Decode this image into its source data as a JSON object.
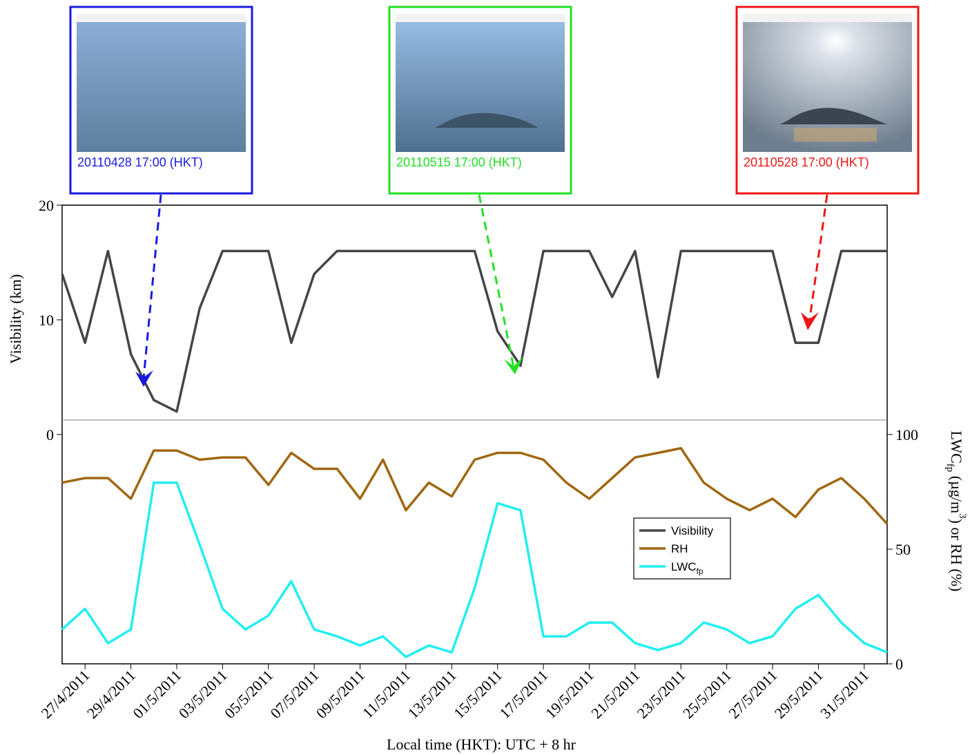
{
  "chart_data": {
    "type": "line",
    "ylabel": "Visibility (km)",
    "y2label": [
      {
        "text": "LWC"
      },
      {
        "text": "fp",
        "sub": true
      },
      {
        "text": " (µg/m"
      },
      {
        "text": "3",
        "sup": true
      },
      {
        "text": ") or RH (%)"
      }
    ],
    "xlabel": "Local time (HKT): UTC + 8 hr",
    "xlim": [
      "2011-04-26",
      "2011-06-01"
    ],
    "xticks": [
      {
        "value": "2011-04-27",
        "label": "27/4/2011"
      },
      {
        "value": "2011-04-29",
        "label": "29/4/2011"
      },
      {
        "value": "2011-05-01",
        "label": "01/5/2011"
      },
      {
        "value": "2011-05-03",
        "label": "03/5/2011"
      },
      {
        "value": "2011-05-05",
        "label": "05/5/2011"
      },
      {
        "value": "2011-05-07",
        "label": "07/5/2011"
      },
      {
        "value": "2011-05-09",
        "label": "09/5/2011"
      },
      {
        "value": "2011-05-11",
        "label": "11/5/2011"
      },
      {
        "value": "2011-05-13",
        "label": "13/5/2011"
      },
      {
        "value": "2011-05-15",
        "label": "15/5/2011"
      },
      {
        "value": "2011-05-17",
        "label": "17/5/2011"
      },
      {
        "value": "2011-05-19",
        "label": "19/5/2011"
      },
      {
        "value": "2011-05-21",
        "label": "21/5/2011"
      },
      {
        "value": "2011-05-23",
        "label": "23/5/2011"
      },
      {
        "value": "2011-05-25",
        "label": "25/5/2011"
      },
      {
        "value": "2011-05-27",
        "label": "27/5/2011"
      },
      {
        "value": "2011-05-29",
        "label": "29/5/2011"
      },
      {
        "value": "2011-05-31",
        "label": "31/5/2011"
      }
    ],
    "ylim": [
      -20,
      20
    ],
    "yticks": [
      0,
      10,
      20
    ],
    "y2lim": [
      0,
      200
    ],
    "y2ticks": [
      0,
      50,
      100
    ],
    "x": [
      "2011-04-26",
      "2011-04-27",
      "2011-04-28",
      "2011-04-29",
      "2011-04-30",
      "2011-05-01",
      "2011-05-02",
      "2011-05-03",
      "2011-05-04",
      "2011-05-05",
      "2011-05-06",
      "2011-05-07",
      "2011-05-08",
      "2011-05-09",
      "2011-05-10",
      "2011-05-11",
      "2011-05-12",
      "2011-05-13",
      "2011-05-14",
      "2011-05-15",
      "2011-05-16",
      "2011-05-17",
      "2011-05-18",
      "2011-05-19",
      "2011-05-20",
      "2011-05-21",
      "2011-05-22",
      "2011-05-23",
      "2011-05-24",
      "2011-05-25",
      "2011-05-26",
      "2011-05-27",
      "2011-05-28",
      "2011-05-29",
      "2011-05-30",
      "2011-05-31",
      "2011-06-01"
    ],
    "series": [
      {
        "name": "Visibility",
        "color": "#454545",
        "values": [
          14,
          8,
          16,
          7,
          3,
          2,
          11,
          16,
          16,
          16,
          8,
          14,
          16,
          16,
          16,
          16,
          16,
          16,
          16,
          9,
          6,
          16,
          16,
          16,
          12,
          16,
          5,
          16,
          16,
          16,
          16,
          16,
          8,
          8,
          16,
          16,
          16
        ]
      },
      {
        "name": "RH",
        "color": "#a0660f",
        "axis": "y2",
        "values": [
          79,
          81,
          81,
          72,
          93,
          93,
          89,
          90,
          90,
          78,
          92,
          85,
          85,
          72,
          89,
          67,
          79,
          73,
          89,
          92,
          92,
          89,
          79,
          72,
          81,
          90,
          92,
          94,
          79,
          72,
          67,
          72,
          64,
          76,
          81,
          72,
          61
        ]
      },
      {
        "name": "LWC",
        "name_subscript": "fp",
        "color": "#22eef0",
        "axis": "y2",
        "values": [
          15,
          24,
          9,
          15,
          79,
          79,
          52,
          24,
          15,
          21,
          36,
          15,
          12,
          8,
          12,
          3,
          8,
          5,
          33,
          70,
          67,
          12,
          12,
          18,
          18,
          9,
          6,
          9,
          18,
          15,
          9,
          12,
          24,
          30,
          18,
          9,
          5
        ]
      }
    ]
  },
  "photos": [
    {
      "caption": "20110428 17:00 (HKT)",
      "color": "#1a1adf"
    },
    {
      "caption": "20110515 17:00 (HKT)",
      "color": "#22e022"
    },
    {
      "caption": "20110528 17:00 (HKT)",
      "color": "#ee1515"
    }
  ]
}
